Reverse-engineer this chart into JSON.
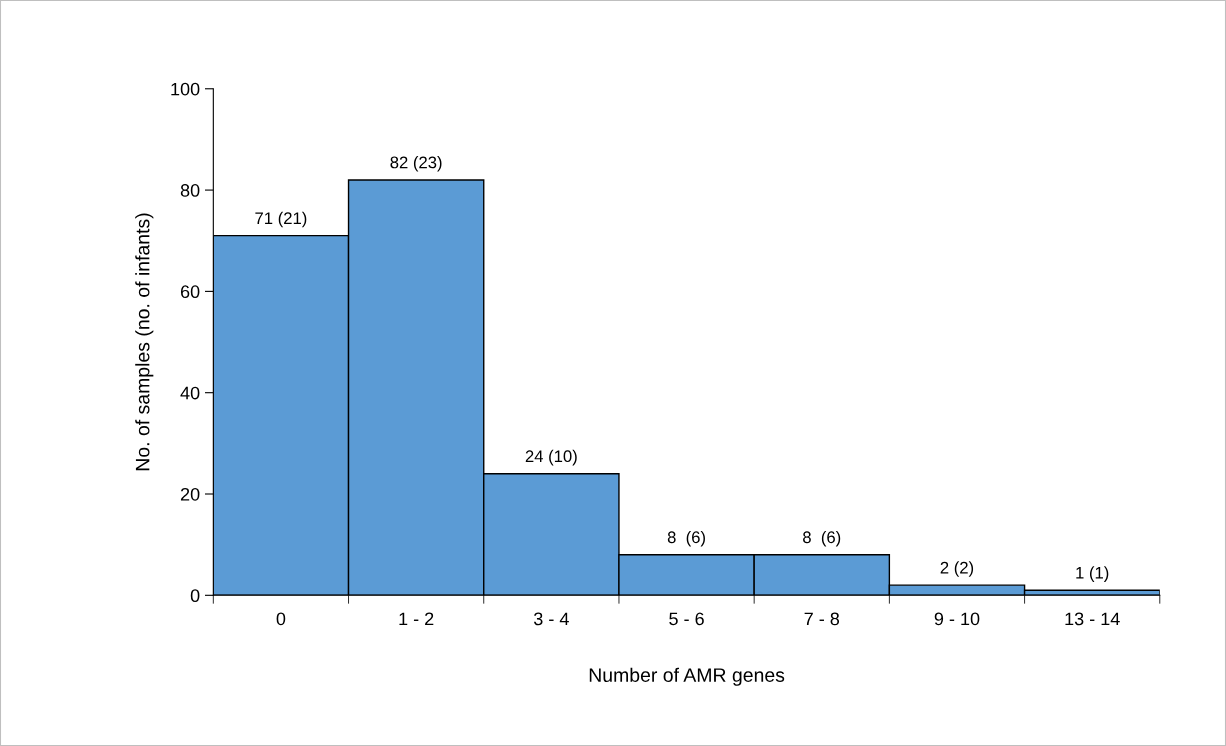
{
  "chart_data": {
    "type": "bar",
    "xlabel": "Number of AMR genes",
    "ylabel": "No. of samples (no. of infants)",
    "categories": [
      "0",
      "1 - 2",
      "3 - 4",
      "5 - 6",
      "7 - 8",
      "9 - 10",
      "13 - 14"
    ],
    "values": [
      71,
      82,
      24,
      8,
      8,
      2,
      1
    ],
    "value_labels": [
      "71 (21)",
      "82 (23)",
      "24 (10)",
      "8  (6)",
      "8  (6)",
      "2 (2)",
      "1 (1)"
    ],
    "color": "#5b9bd5",
    "ylim": [
      0,
      100
    ],
    "yticks": [
      0,
      20,
      40,
      60,
      80,
      100
    ],
    "grid": false
  }
}
